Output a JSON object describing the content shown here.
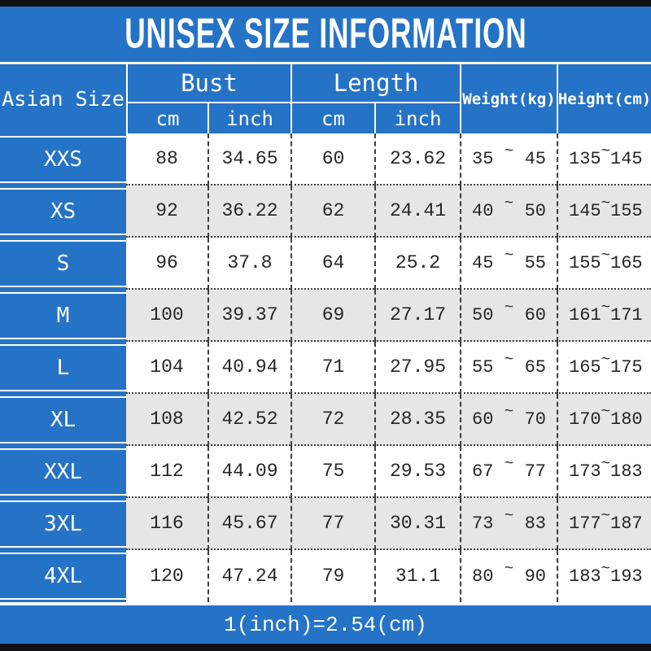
{
  "title": "UNISEX SIZE INFORMATION",
  "footer_note": "1(inch)=2.54(cm)",
  "colors": {
    "blue": "#2573c6",
    "row_alt": "#e6e6e6",
    "bar": "#121212",
    "text": "#262626"
  },
  "table": {
    "size_header": "Asian Size",
    "bust_header": "Bust",
    "length_header": "Length",
    "weight_header": "Weight(kg)",
    "height_header": "Height(cm)",
    "unit_cm": "cm",
    "unit_inch": "inch",
    "tilde": "~",
    "rows": [
      {
        "size": "XXS",
        "bust_cm": "88",
        "bust_inch": "34.65",
        "len_cm": "60",
        "len_inch": "23.62",
        "weight_min": "35",
        "weight_max": "45",
        "height_min": "135",
        "height_max": "145"
      },
      {
        "size": "XS",
        "bust_cm": "92",
        "bust_inch": "36.22",
        "len_cm": "62",
        "len_inch": "24.41",
        "weight_min": "40",
        "weight_max": "50",
        "height_min": "145",
        "height_max": "155"
      },
      {
        "size": "S",
        "bust_cm": "96",
        "bust_inch": "37.8",
        "len_cm": "64",
        "len_inch": "25.2",
        "weight_min": "45",
        "weight_max": "55",
        "height_min": "155",
        "height_max": "165"
      },
      {
        "size": "M",
        "bust_cm": "100",
        "bust_inch": "39.37",
        "len_cm": "69",
        "len_inch": "27.17",
        "weight_min": "50",
        "weight_max": "60",
        "height_min": "161",
        "height_max": "171"
      },
      {
        "size": "L",
        "bust_cm": "104",
        "bust_inch": "40.94",
        "len_cm": "71",
        "len_inch": "27.95",
        "weight_min": "55",
        "weight_max": "65",
        "height_min": "165",
        "height_max": "175"
      },
      {
        "size": "XL",
        "bust_cm": "108",
        "bust_inch": "42.52",
        "len_cm": "72",
        "len_inch": "28.35",
        "weight_min": "60",
        "weight_max": "70",
        "height_min": "170",
        "height_max": "180"
      },
      {
        "size": "XXL",
        "bust_cm": "112",
        "bust_inch": "44.09",
        "len_cm": "75",
        "len_inch": "29.53",
        "weight_min": "67",
        "weight_max": "77",
        "height_min": "173",
        "height_max": "183"
      },
      {
        "size": "3XL",
        "bust_cm": "116",
        "bust_inch": "45.67",
        "len_cm": "77",
        "len_inch": "30.31",
        "weight_min": "73",
        "weight_max": "83",
        "height_min": "177",
        "height_max": "187"
      },
      {
        "size": "4XL",
        "bust_cm": "120",
        "bust_inch": "47.24",
        "len_cm": "79",
        "len_inch": "31.1",
        "weight_min": "80",
        "weight_max": "90",
        "height_min": "183",
        "height_max": "193"
      }
    ]
  },
  "chart_data": {
    "type": "table",
    "title": "UNISEX SIZE INFORMATION",
    "columns": [
      "Asian Size",
      "Bust cm",
      "Bust inch",
      "Length cm",
      "Length inch",
      "Weight(kg)",
      "Height(cm)"
    ],
    "rows": [
      [
        "XXS",
        "88",
        "34.65",
        "60",
        "23.62",
        "35 ~ 45",
        "135 ~ 145"
      ],
      [
        "XS",
        "92",
        "36.22",
        "62",
        "24.41",
        "40 ~ 50",
        "145 ~ 155"
      ],
      [
        "S",
        "96",
        "37.8",
        "64",
        "25.2",
        "45 ~ 55",
        "155 ~ 165"
      ],
      [
        "M",
        "100",
        "39.37",
        "69",
        "27.17",
        "50 ~ 60",
        "161 ~ 171"
      ],
      [
        "L",
        "104",
        "40.94",
        "71",
        "27.95",
        "55 ~ 65",
        "165 ~ 175"
      ],
      [
        "XL",
        "108",
        "42.52",
        "72",
        "28.35",
        "60 ~ 70",
        "170 ~ 180"
      ],
      [
        "XXL",
        "112",
        "44.09",
        "75",
        "29.53",
        "67 ~ 77",
        "173 ~ 183"
      ],
      [
        "3XL",
        "116",
        "45.67",
        "77",
        "30.31",
        "73 ~ 83",
        "177 ~ 187"
      ],
      [
        "4XL",
        "120",
        "47.24",
        "79",
        "31.1",
        "80 ~ 90",
        "183 ~ 193"
      ]
    ],
    "note": "1(inch)=2.54(cm)"
  }
}
